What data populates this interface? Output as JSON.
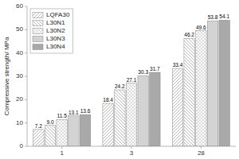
{
  "chart_data": {
    "type": "bar",
    "ylabel": "Compressive strength/ MPa",
    "categories": [
      "1",
      "3",
      "28"
    ],
    "series": [
      {
        "name": "LQFA30",
        "color": "white",
        "values": [
          7.2,
          18.4,
          33.4
        ]
      },
      {
        "name": "L30N1",
        "color": "white",
        "values": [
          9.0,
          24.2,
          46.2
        ],
        "value_labels": [
          "9.0",
          "24.2",
          "46.2"
        ]
      },
      {
        "name": "L30N2",
        "color": "white",
        "values": [
          11.5,
          27.1,
          49.6
        ]
      },
      {
        "name": "L30N3",
        "color": "#d3d3d3",
        "values": [
          13.1,
          30.3,
          53.8
        ]
      },
      {
        "name": "L30N4",
        "color": "#a9a9a9",
        "values": [
          13.6,
          31.7,
          54.1
        ]
      }
    ],
    "ylim": [
      0,
      60
    ],
    "yticks": [
      0,
      10,
      20,
      30,
      40,
      50,
      60
    ],
    "legend": "upper left",
    "data_labels": true,
    "grid": false
  }
}
